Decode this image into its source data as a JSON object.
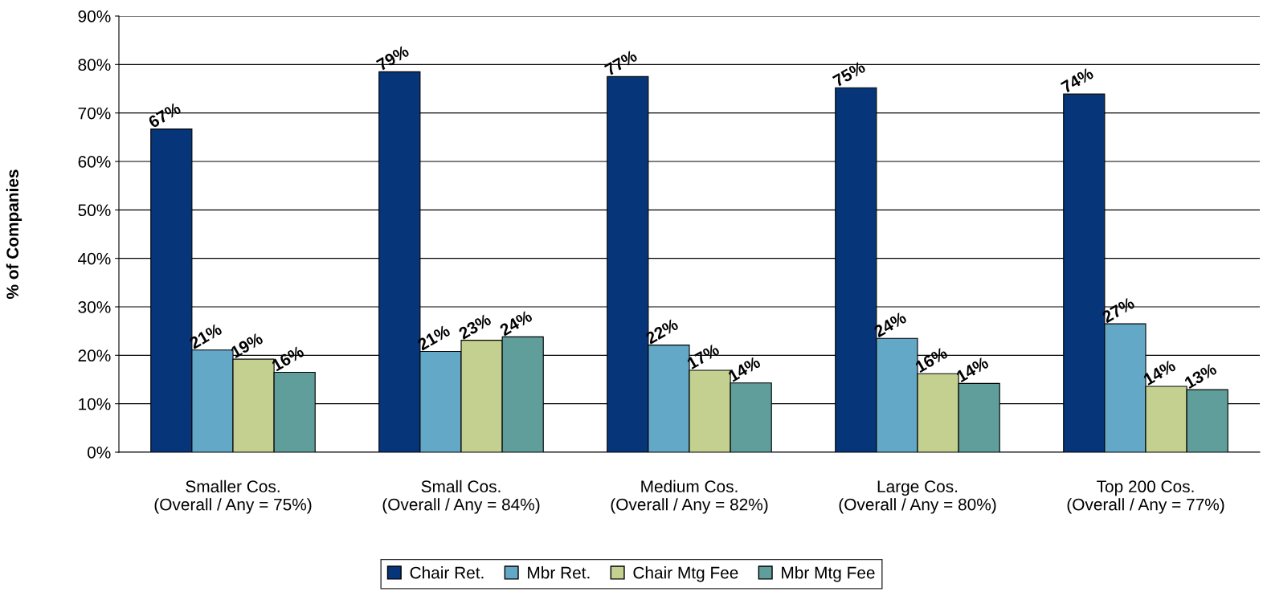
{
  "chart_data": {
    "type": "bar",
    "ylabel": "% of Companies",
    "categories": [
      "Smaller Cos.\n(Overall / Any = 75%)",
      "Small Cos.\n(Overall / Any = 84%)",
      "Medium Cos.\n(Overall / Any = 82%)",
      "Large Cos.\n(Overall / Any = 80%)",
      "Top 200 Cos.\n(Overall / Any = 77%)"
    ],
    "series": [
      {
        "name": "Chair Ret.",
        "color": "#06357a",
        "values": [
          66.7,
          78.5,
          77.5,
          75.2,
          73.9
        ],
        "value_labels": [
          "67%",
          "79%",
          "77%",
          "75%",
          "74%"
        ]
      },
      {
        "name": "Mbr Ret.",
        "color": "#64a8c8",
        "values": [
          21.1,
          20.8,
          22.1,
          23.5,
          26.5
        ],
        "value_labels": [
          "21%",
          "21%",
          "22%",
          "24%",
          "27%"
        ]
      },
      {
        "name": "Chair Mtg Fee",
        "color": "#c3d08f",
        "values": [
          19.2,
          23.1,
          16.9,
          16.2,
          13.6
        ],
        "value_labels": [
          "19%",
          "23%",
          "17%",
          "16%",
          "14%"
        ]
      },
      {
        "name": "Mbr Mtg Fee",
        "color": "#5f9e9a",
        "values": [
          16.5,
          23.8,
          14.3,
          14.2,
          12.9
        ],
        "value_labels": [
          "16%",
          "24%",
          "14%",
          "14%",
          "13%"
        ]
      }
    ],
    "ylim": [
      0,
      90
    ],
    "yticks": [
      {
        "value": 0,
        "label": "0%"
      },
      {
        "value": 10,
        "label": "10%"
      },
      {
        "value": 20,
        "label": "20%"
      },
      {
        "value": 30,
        "label": "30%"
      },
      {
        "value": 40,
        "label": "40%"
      },
      {
        "value": 50,
        "label": "50%"
      },
      {
        "value": 60,
        "label": "60%"
      },
      {
        "value": 70,
        "label": "70%"
      },
      {
        "value": 80,
        "label": "80%"
      },
      {
        "value": 90,
        "label": "90%"
      }
    ],
    "grid": "y",
    "legend": "bottom"
  }
}
